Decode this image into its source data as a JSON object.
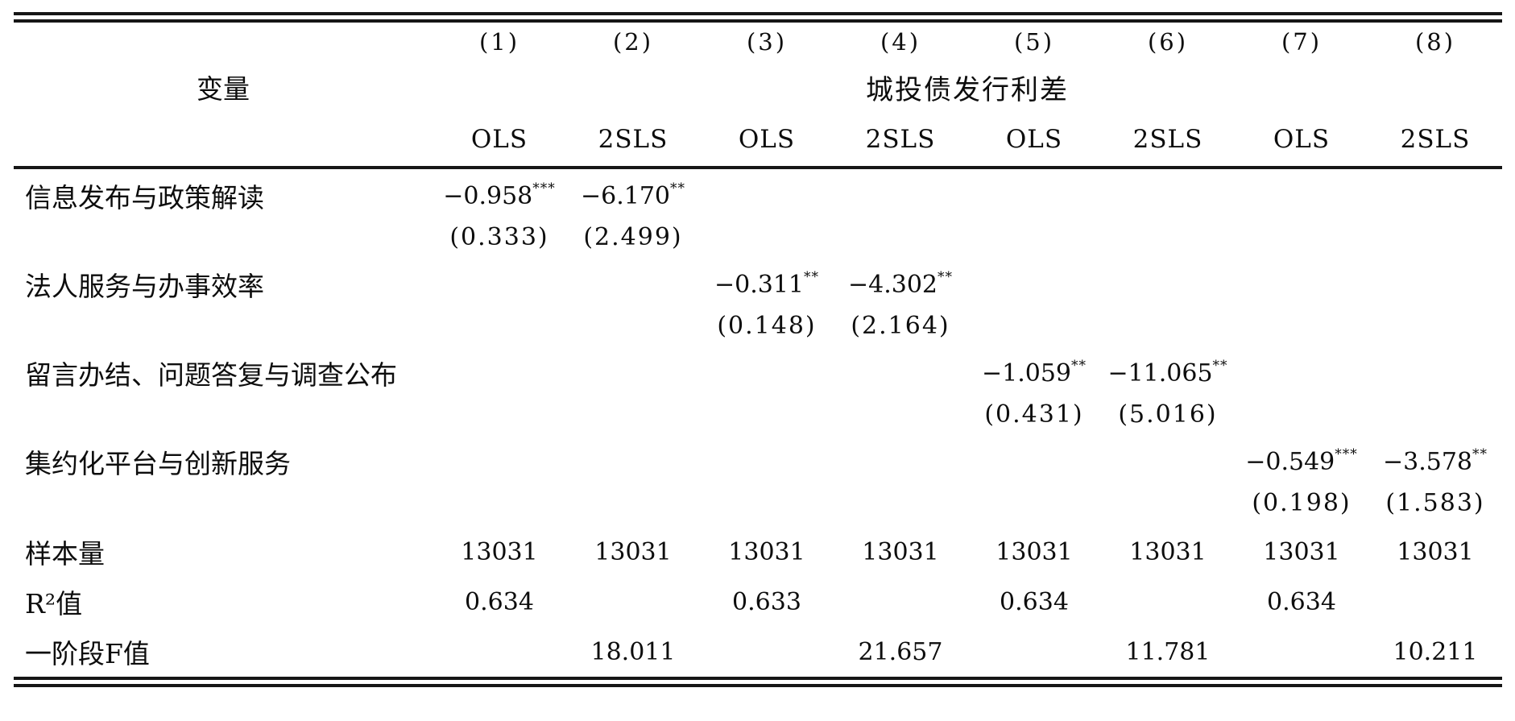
{
  "table": {
    "header": {
      "col_numbers": [
        "(1)",
        "(2)",
        "(3)",
        "(4)",
        "(5)",
        "(6)",
        "(7)",
        "(8)"
      ],
      "variable_label": "变量",
      "dep_var_label": "城投债发行利差",
      "methods": [
        "OLS",
        "2SLS",
        "OLS",
        "2SLS",
        "OLS",
        "2SLS",
        "OLS",
        "2SLS"
      ]
    },
    "rows": [
      {
        "label": "信息发布与政策解读",
        "coefs": [
          {
            "v": "−0.958",
            "s": "***"
          },
          {
            "v": "−6.170",
            "s": "**"
          },
          null,
          null,
          null,
          null,
          null,
          null
        ],
        "ses": [
          "(0.333)",
          "(2.499)",
          "",
          "",
          "",
          "",
          "",
          ""
        ]
      },
      {
        "label": "法人服务与办事效率",
        "coefs": [
          null,
          null,
          {
            "v": "−0.311",
            "s": "**"
          },
          {
            "v": "−4.302",
            "s": "**"
          },
          null,
          null,
          null,
          null
        ],
        "ses": [
          "",
          "",
          "(0.148)",
          "(2.164)",
          "",
          "",
          "",
          ""
        ]
      },
      {
        "label": "留言办结、问题答复与调查公布",
        "coefs": [
          null,
          null,
          null,
          null,
          {
            "v": "−1.059",
            "s": "**"
          },
          {
            "v": "−11.065",
            "s": "**"
          },
          null,
          null
        ],
        "ses": [
          "",
          "",
          "",
          "",
          "(0.431)",
          "(5.016)",
          "",
          ""
        ]
      },
      {
        "label": "集约化平台与创新服务",
        "coefs": [
          null,
          null,
          null,
          null,
          null,
          null,
          {
            "v": "−0.549",
            "s": "***"
          },
          {
            "v": "−3.578",
            "s": "**"
          }
        ],
        "ses": [
          "",
          "",
          "",
          "",
          "",
          "",
          "(0.198)",
          "(1.583)"
        ]
      }
    ],
    "stats": [
      {
        "label": "样本量",
        "values": [
          "13031",
          "13031",
          "13031",
          "13031",
          "13031",
          "13031",
          "13031",
          "13031"
        ]
      },
      {
        "label": "R²值",
        "values": [
          "0.634",
          "",
          "0.633",
          "",
          "0.634",
          "",
          "0.634",
          ""
        ]
      },
      {
        "label": "一阶段F值",
        "values": [
          "",
          "18.011",
          "",
          "21.657",
          "",
          "11.781",
          "",
          "10.211"
        ]
      }
    ]
  },
  "colors": {
    "text": "#0d0d0d",
    "rule": "#161616",
    "background": "#ffffff"
  }
}
